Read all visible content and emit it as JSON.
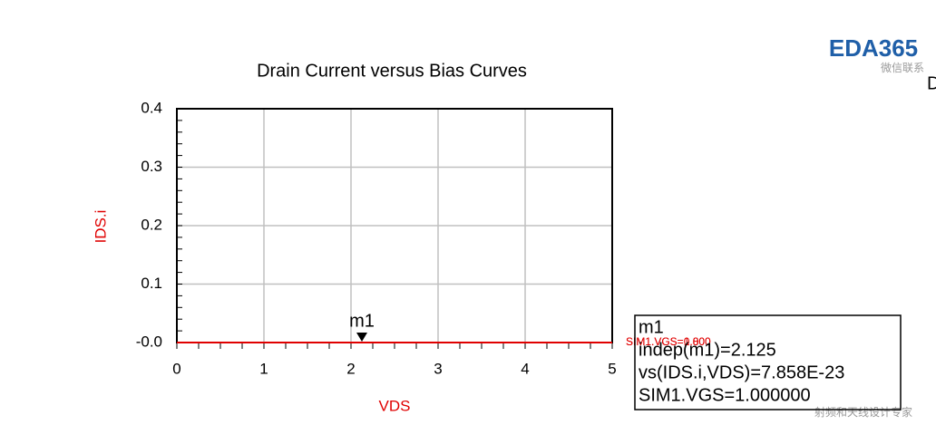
{
  "chart_data": {
    "type": "line",
    "title": "Drain Current versus Bias Curves",
    "x_label": "VDS",
    "y_label": "IDS.i",
    "xlim": [
      0,
      5
    ],
    "xticks": [
      0,
      1,
      2,
      3,
      4,
      5
    ],
    "ylim": [
      0,
      0.4
    ],
    "yticks": [
      {
        "value": 0,
        "label": "-0.0"
      },
      0.1,
      0.2,
      0.3,
      0.4
    ],
    "grid": true,
    "series": [
      {
        "name": "SIM1.VGS=0.800",
        "color": "#e00000",
        "x": [
          0,
          5
        ],
        "values": [
          0,
          0
        ]
      },
      {
        "name": "SIM1.VGS=1.000",
        "color": "#e00000",
        "x": [
          0,
          5
        ],
        "values": [
          0,
          0
        ]
      }
    ],
    "marker": {
      "name": "m1",
      "x": 2.125,
      "y": 7.858e-23,
      "readout": [
        "m1",
        "indep(m1)=2.125",
        "vs(IDS.i,VDS)=7.858E-23",
        "SIM1.VGS=1.000000"
      ]
    }
  },
  "watermark": {
    "logo": "EDA365",
    "contact": "微信联系",
    "footer": "射频和天线设计专家",
    "edge": "D"
  }
}
